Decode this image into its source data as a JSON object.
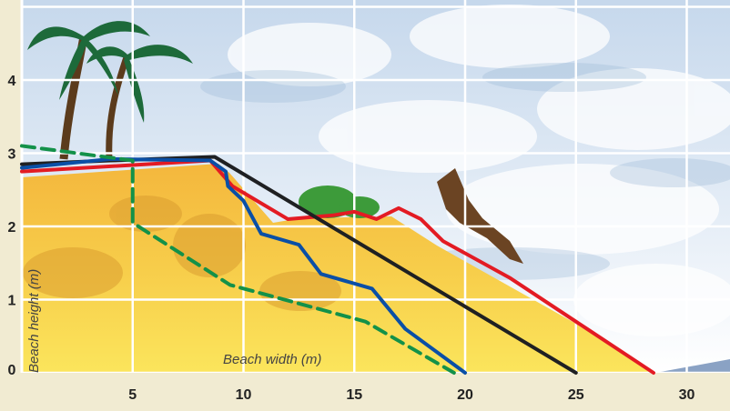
{
  "chart_data": {
    "type": "line",
    "title": "",
    "xlabel": "Beach width (m)",
    "ylabel": "Beach height (m)",
    "xlim": [
      0,
      32
    ],
    "ylim": [
      0,
      5
    ],
    "x_ticks": [
      5,
      10,
      15,
      20,
      25,
      30
    ],
    "y_ticks": [
      0,
      1,
      2,
      3,
      4
    ],
    "grid": true,
    "legend": "none",
    "background": "watercolour beach illustration with palm trees, clouds and a bird",
    "series": [
      {
        "color": "#e31b23",
        "style": "solid",
        "points": [
          [
            0,
            2.75
          ],
          [
            8.5,
            2.9
          ],
          [
            9.5,
            2.55
          ],
          [
            12,
            2.1
          ],
          [
            14,
            2.15
          ],
          [
            15,
            2.2
          ],
          [
            16,
            2.1
          ],
          [
            17,
            2.25
          ],
          [
            18,
            2.1
          ],
          [
            19,
            1.8
          ],
          [
            22,
            1.3
          ],
          [
            25.5,
            0.6
          ],
          [
            28.5,
            0
          ]
        ]
      },
      {
        "color": "#1f2022",
        "style": "solid",
        "points": [
          [
            0,
            2.85
          ],
          [
            4,
            2.9
          ],
          [
            8.7,
            2.95
          ],
          [
            25,
            0
          ]
        ]
      },
      {
        "color": "#0a4fa6",
        "style": "solid",
        "points": [
          [
            0,
            2.8
          ],
          [
            4,
            2.92
          ],
          [
            8.5,
            2.9
          ],
          [
            9.2,
            2.75
          ],
          [
            9.3,
            2.55
          ],
          [
            10,
            2.35
          ],
          [
            10.8,
            1.9
          ],
          [
            12.5,
            1.75
          ],
          [
            13.5,
            1.35
          ],
          [
            15.8,
            1.15
          ],
          [
            17.3,
            0.6
          ],
          [
            20,
            0
          ]
        ]
      },
      {
        "color": "#139149",
        "style": "dashed",
        "points": [
          [
            0,
            3.1
          ],
          [
            5,
            2.9
          ],
          [
            5,
            2.05
          ],
          [
            9.4,
            1.2
          ],
          [
            15.5,
            0.7
          ],
          [
            19.5,
            0
          ]
        ]
      }
    ]
  }
}
